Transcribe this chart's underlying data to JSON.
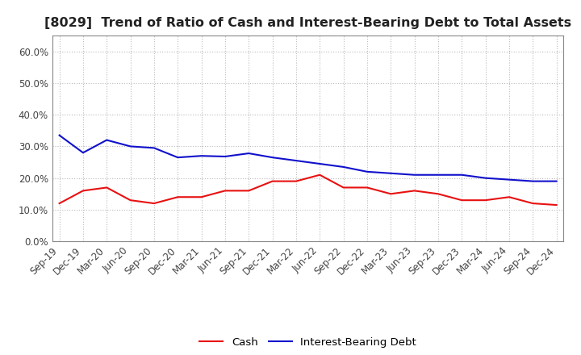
{
  "title": "[8029]  Trend of Ratio of Cash and Interest-Bearing Debt to Total Assets",
  "labels": [
    "Sep-19",
    "Dec-19",
    "Mar-20",
    "Jun-20",
    "Sep-20",
    "Dec-20",
    "Mar-21",
    "Jun-21",
    "Sep-21",
    "Dec-21",
    "Mar-22",
    "Jun-22",
    "Sep-22",
    "Dec-22",
    "Mar-23",
    "Jun-23",
    "Sep-23",
    "Dec-23",
    "Mar-24",
    "Jun-24",
    "Sep-24",
    "Dec-24"
  ],
  "cash": [
    0.12,
    0.16,
    0.17,
    0.13,
    0.12,
    0.14,
    0.14,
    0.16,
    0.16,
    0.19,
    0.19,
    0.21,
    0.17,
    0.17,
    0.15,
    0.16,
    0.15,
    0.13,
    0.13,
    0.14,
    0.12,
    0.115
  ],
  "interest_bearing_debt": [
    0.335,
    0.28,
    0.32,
    0.3,
    0.295,
    0.265,
    0.27,
    0.268,
    0.278,
    0.265,
    0.255,
    0.245,
    0.235,
    0.22,
    0.215,
    0.21,
    0.21,
    0.21,
    0.2,
    0.195,
    0.19,
    0.19
  ],
  "cash_color": "#e81010",
  "debt_color": "#1010cc",
  "ylim": [
    0.0,
    0.65
  ],
  "yticks": [
    0.0,
    0.1,
    0.2,
    0.3,
    0.4,
    0.5,
    0.6
  ],
  "legend_cash": "Cash",
  "legend_debt": "Interest-Bearing Debt",
  "background_color": "#ffffff",
  "plot_bg_color": "#ffffff",
  "grid_color": "#bbbbbb",
  "title_fontsize": 11.5,
  "tick_fontsize": 8.5,
  "tick_color": "#444444",
  "legend_fontsize": 9.5
}
